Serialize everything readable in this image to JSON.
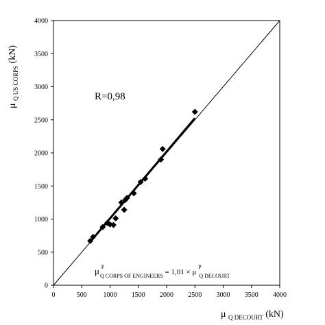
{
  "chart_data": {
    "type": "scatter",
    "x_axis": {
      "label_mu": "μ",
      "label_sub": "Q DECOURT",
      "label_unit": "(kN)",
      "lim": [
        0,
        4000
      ],
      "ticks": [
        0,
        500,
        1000,
        1500,
        2000,
        2500,
        3000,
        3500,
        4000
      ]
    },
    "y_axis": {
      "label_mu": "μ",
      "label_sub": "Q US CORPS",
      "label_unit": "(kN)",
      "lim": [
        0,
        4000
      ],
      "ticks": [
        0,
        500,
        1000,
        1500,
        2000,
        2500,
        3000,
        3500,
        4000
      ]
    },
    "grid": false,
    "annotation_r": "R=0,98",
    "equation": {
      "lhs_mu": "μ",
      "lhs_sup": "P",
      "lhs_sub": "Q CORPS OF ENGINEERS",
      "middle": " = 1,01 × μ",
      "rhs_sup": "P",
      "rhs_sub": "Q DECOURT"
    },
    "points": [
      {
        "x": 650,
        "y": 670
      },
      {
        "x": 700,
        "y": 730
      },
      {
        "x": 870,
        "y": 880
      },
      {
        "x": 950,
        "y": 940
      },
      {
        "x": 1000,
        "y": 920
      },
      {
        "x": 1060,
        "y": 910
      },
      {
        "x": 1100,
        "y": 1010
      },
      {
        "x": 1200,
        "y": 1250
      },
      {
        "x": 1250,
        "y": 1140
      },
      {
        "x": 1270,
        "y": 1290
      },
      {
        "x": 1300,
        "y": 1320
      },
      {
        "x": 1420,
        "y": 1390
      },
      {
        "x": 1540,
        "y": 1560
      },
      {
        "x": 1620,
        "y": 1610
      },
      {
        "x": 1900,
        "y": 1900
      },
      {
        "x": 1930,
        "y": 2060
      },
      {
        "x": 2500,
        "y": 2620
      }
    ],
    "reference_line": {
      "x": [
        0,
        4000
      ],
      "y": [
        0,
        4000
      ]
    },
    "fit_line": {
      "x": [
        650,
        2500
      ],
      "y": [
        656.5,
        2525
      ]
    }
  }
}
